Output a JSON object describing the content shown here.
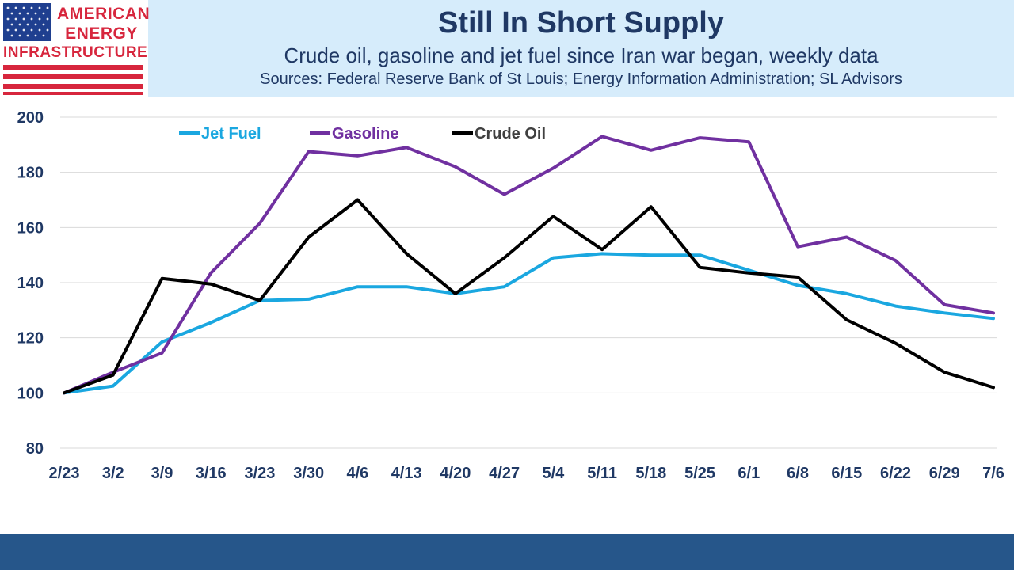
{
  "logo": {
    "line1": "AMERICAN",
    "line2": "ENERGY",
    "line3": "INFRASTRUCTURE"
  },
  "chart_data": {
    "type": "line",
    "title": "Still In Short Supply",
    "subtitle": "Crude oil, gasoline and jet fuel since Iran war began, weekly data",
    "sources": "Sources: Federal Reserve Bank of St Louis; Energy Information Administration; SL Advisors",
    "x": [
      "2/23",
      "3/2",
      "3/9",
      "3/16",
      "3/23",
      "3/30",
      "4/6",
      "4/13",
      "4/20",
      "4/27",
      "5/4",
      "5/11",
      "5/18",
      "5/25",
      "6/1",
      "6/8",
      "6/15",
      "6/22",
      "6/29",
      "7/6"
    ],
    "ylim": [
      80,
      200
    ],
    "yticks": [
      80,
      100,
      120,
      140,
      160,
      180,
      200
    ],
    "grid": true,
    "legend_position": "top-left",
    "series": [
      {
        "name": "Jet Fuel",
        "color": "#1aa7e0",
        "values": [
          100,
          102.5,
          118.5,
          125.5,
          133.5,
          134,
          138.5,
          138.5,
          136,
          138.5,
          149,
          150.5,
          150,
          150,
          144.5,
          139,
          136,
          131.5,
          129,
          127
        ]
      },
      {
        "name": "Gasoline",
        "color": "#7030a0",
        "values": [
          100,
          107.5,
          114.5,
          143.5,
          161.5,
          187.5,
          186,
          189,
          182,
          172,
          181.5,
          193,
          188,
          192.5,
          191,
          153,
          156.5,
          148,
          132,
          129
        ]
      },
      {
        "name": "Crude Oil",
        "color": "#000000",
        "values": [
          100,
          106.5,
          141.5,
          139.5,
          133.5,
          156.5,
          170,
          150.5,
          136,
          149,
          164,
          152,
          167.5,
          145.5,
          143.5,
          142,
          126.5,
          118,
          107.5,
          102
        ]
      }
    ]
  },
  "colors": {
    "header_band": "#d6ecfb",
    "title_text": "#1f3864",
    "footer_band": "#26568a",
    "logo_red": "#d7263d",
    "logo_blue": "#1f3f8f"
  }
}
